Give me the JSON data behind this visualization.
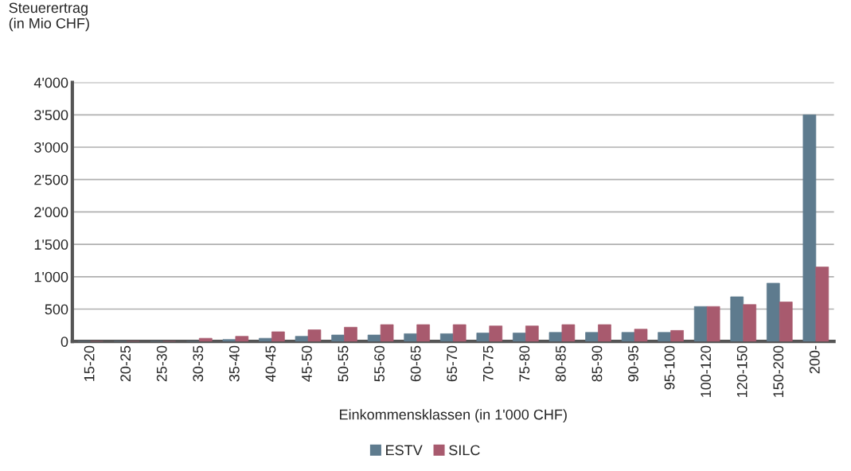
{
  "chart_data": {
    "type": "bar",
    "ylabel": "Steuerertrag\n(in Mio CHF)",
    "xlabel": "Einkommensklassen (in 1'000 CHF)",
    "categories": [
      "15-20",
      "20-25",
      "25-30",
      "30-35",
      "35-40",
      "40-45",
      "45-50",
      "50-55",
      "55-60",
      "60-65",
      "65-70",
      "70-75",
      "75-80",
      "80-85",
      "85-90",
      "90-95",
      "95-100",
      "100-120",
      "120-150",
      "150-200",
      "200-"
    ],
    "series": [
      {
        "name": "ESTV",
        "color": "#5e7b8e",
        "values": [
          0,
          0,
          0,
          0,
          30,
          50,
          80,
          100,
          100,
          120,
          120,
          130,
          130,
          140,
          140,
          140,
          140,
          540,
          690,
          900,
          3500
        ]
      },
      {
        "name": "SILC",
        "color": "#a85a6e",
        "values": [
          0,
          0,
          0,
          50,
          80,
          150,
          180,
          220,
          260,
          260,
          260,
          240,
          240,
          260,
          260,
          190,
          170,
          540,
          570,
          610,
          1150
        ]
      }
    ],
    "ylim": [
      0,
      4000
    ],
    "yticks": [
      0,
      500,
      {
        "value": 1000,
        "label": "1'000"
      },
      {
        "value": 1500,
        "label": "1'500"
      },
      {
        "value": 2000,
        "label": "2'000"
      },
      {
        "value": 2500,
        "label": "2'500"
      },
      {
        "value": 3000,
        "label": "3'000"
      },
      {
        "value": 3500,
        "label": "3'500"
      },
      {
        "value": 4000,
        "label": "4'000"
      }
    ],
    "grid": "y",
    "legend": "bottom"
  }
}
